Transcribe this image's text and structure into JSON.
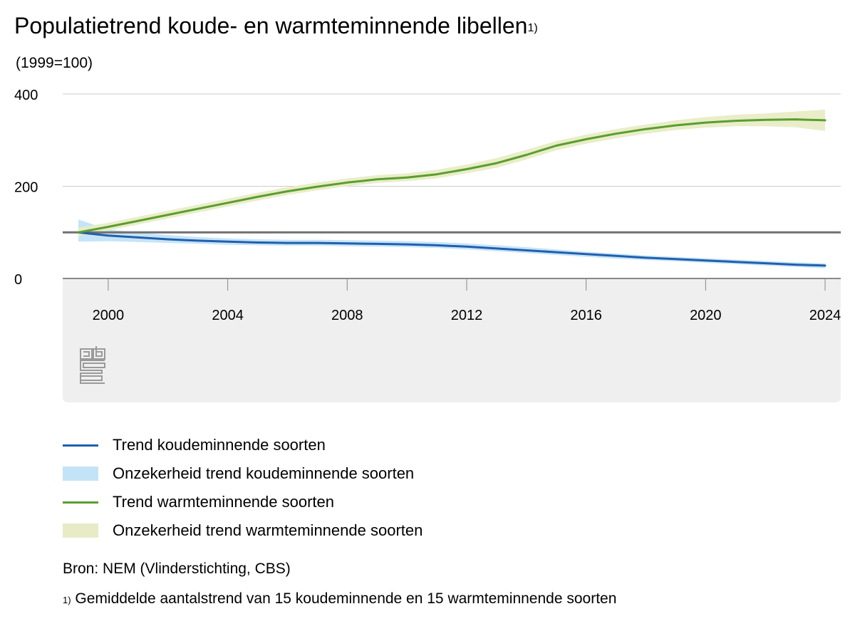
{
  "title": "Populatietrend koude- en warmteminnende libellen",
  "title_footnote_marker": "1)",
  "unit_label": "(1999=100)",
  "source": "Bron: NEM (Vlinderstichting, CBS)",
  "footnote_marker": "1)",
  "footnote": "Gemiddelde aantalstrend van 15 koudeminnende en 15 warmteminnende soorten",
  "logo": "cbs-logo-icon",
  "colors": {
    "cold_line": "#1f5fae",
    "cold_band": "#c3e3f7",
    "warm_line": "#5a9e2e",
    "warm_band": "#e8ecc6",
    "reference_line": "#707070",
    "axis_area": "#efefef",
    "gridline": "#cccccc"
  },
  "chart_data": {
    "type": "line",
    "title": "Populatietrend koude- en warmteminnende libellen",
    "ylabel": "(1999=100)",
    "ylim": [
      0,
      400
    ],
    "yticks": [
      "0",
      "200",
      "400"
    ],
    "xlim": [
      1999,
      2024
    ],
    "xticks": [
      "2000",
      "2004",
      "2008",
      "2012",
      "2016",
      "2020",
      "2024"
    ],
    "reference_value": 100,
    "x": [
      1999,
      2000,
      2001,
      2002,
      2003,
      2004,
      2005,
      2006,
      2007,
      2008,
      2009,
      2010,
      2011,
      2012,
      2013,
      2014,
      2015,
      2016,
      2017,
      2018,
      2019,
      2020,
      2021,
      2022,
      2023,
      2024
    ],
    "series": [
      {
        "name": "Trend koudeminnende soorten",
        "color": "#1f5fae",
        "values": [
          100,
          93,
          89,
          85,
          82,
          80,
          78,
          77,
          77,
          76,
          75,
          74,
          72,
          69,
          65,
          61,
          57,
          53,
          49,
          45,
          42,
          39,
          36,
          33,
          30,
          28
        ],
        "lower": [
          80,
          81,
          79,
          77,
          75,
          73,
          72,
          71,
          71,
          70,
          69,
          68,
          66,
          63,
          59,
          55,
          51,
          47,
          43,
          40,
          37,
          34,
          31,
          28,
          25,
          22
        ],
        "upper": [
          128,
          106,
          100,
          94,
          90,
          87,
          85,
          84,
          84,
          83,
          82,
          81,
          79,
          76,
          72,
          68,
          63,
          58,
          54,
          50,
          47,
          44,
          41,
          38,
          35,
          33
        ]
      },
      {
        "name": "Trend warmteminnende soorten",
        "color": "#5a9e2e",
        "values": [
          100,
          112,
          125,
          138,
          151,
          164,
          177,
          189,
          199,
          208,
          215,
          219,
          226,
          237,
          250,
          268,
          288,
          302,
          314,
          324,
          332,
          338,
          342,
          344,
          345,
          343
        ],
        "lower": [
          92,
          104,
          117,
          130,
          143,
          156,
          169,
          181,
          191,
          200,
          207,
          211,
          217,
          228,
          240,
          258,
          278,
          292,
          304,
          314,
          322,
          327,
          330,
          330,
          328,
          320
        ],
        "upper": [
          110,
          121,
          134,
          147,
          160,
          173,
          186,
          198,
          208,
          217,
          224,
          228,
          236,
          247,
          261,
          279,
          298,
          312,
          324,
          334,
          343,
          350,
          355,
          358,
          362,
          366
        ]
      }
    ],
    "bands": [
      {
        "name": "Onzekerheid trend koudeminnende soorten",
        "color": "#c3e3f7"
      },
      {
        "name": "Onzekerheid trend warmteminnende soorten",
        "color": "#e8ecc6"
      }
    ],
    "legend_position": "bottom"
  }
}
